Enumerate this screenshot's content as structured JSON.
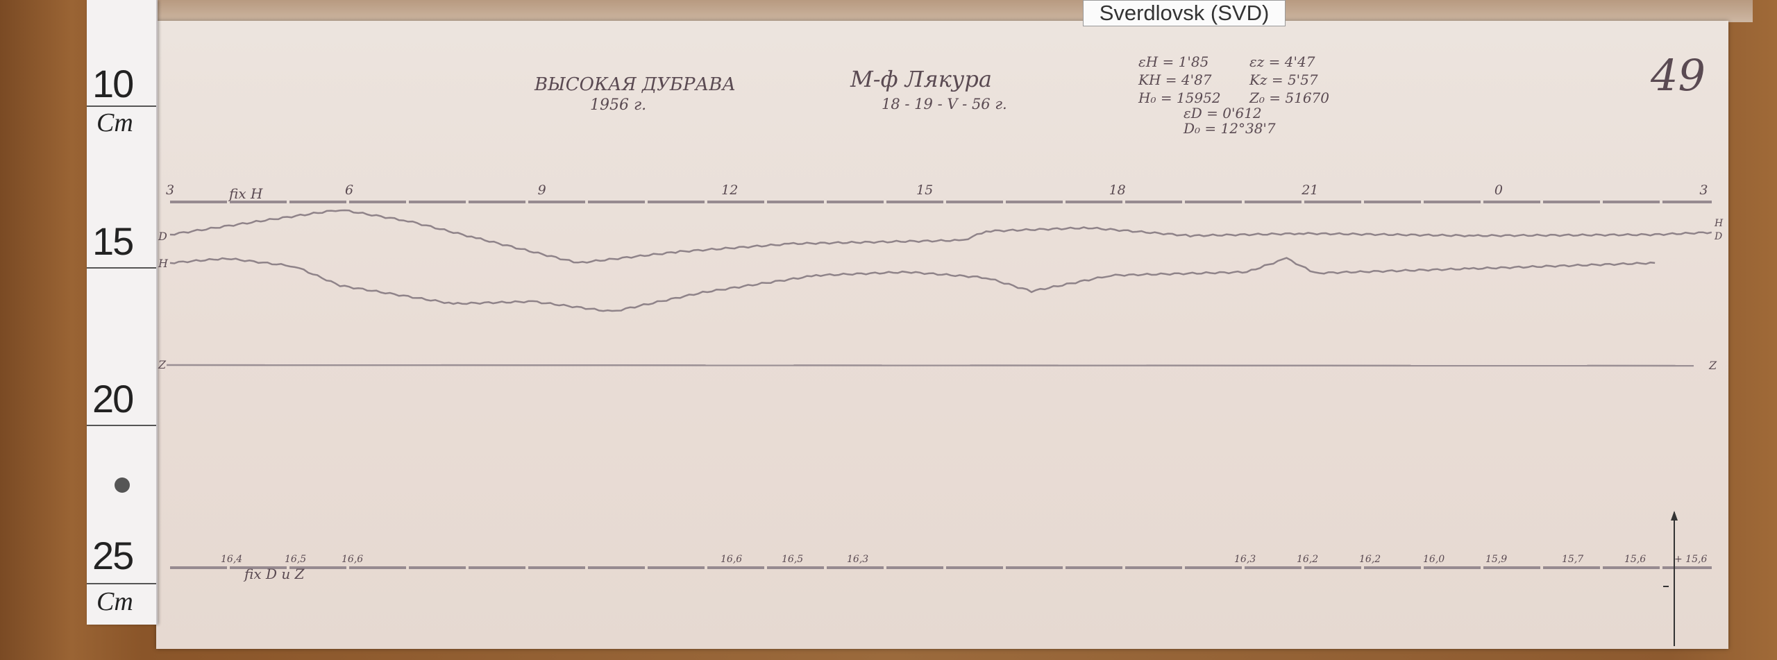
{
  "station_tag": "Sverdlovsk (SVD)",
  "ruler": {
    "labels": [
      "10",
      "15",
      "20",
      "25"
    ],
    "unit_top": "Cm",
    "unit_bottom": "Cm"
  },
  "header": {
    "observatory": "ВЫСОКАЯ ДУБРАВА",
    "year": "1956 г.",
    "observer": "М-ф Лякура",
    "date": "18 - 19 - V - 56 г.",
    "page_number": "49",
    "constants": [
      "εH = 1'85",
      "εz = 4'47",
      "KH = 4'87",
      "Kz = 5'57",
      "H₀ = 15952",
      "Z₀ = 51670",
      "εD = 0'612",
      "D₀ = 12°38'7"
    ]
  },
  "hour_marks": [
    "3",
    "6",
    "9",
    "12",
    "15",
    "18",
    "21",
    "0",
    "3"
  ],
  "baseline_top_label": "fix H",
  "baseline_bottom_label": "fix D и Z",
  "trace_labels": {
    "D_left": "D",
    "H_left": "H",
    "Z_left": "Z",
    "H_right": "H",
    "D_right": "D",
    "Z_right": "Z"
  },
  "temperature_marks": [
    "16,4",
    "16,5",
    "16,6",
    "16,6",
    "16,5",
    "16,3",
    "16,3",
    "16,2",
    "16,2",
    "16,0",
    "15,9",
    "15,7",
    "15,6",
    "+ 15,6"
  ],
  "colors": {
    "paper": "#e9ddd6",
    "trace": "#8f8389",
    "ink": "#5a4a52",
    "wood": "#8a5529"
  }
}
